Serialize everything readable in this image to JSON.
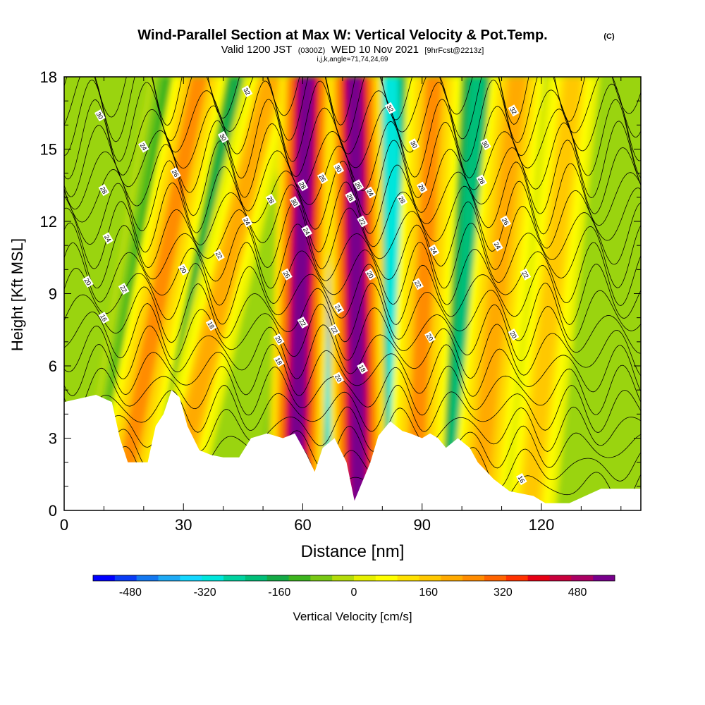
{
  "header": {
    "title": "Wind-Parallel Section at Max W: Vertical Velocity & Pot.Temp.",
    "copyright": "(C)",
    "valid_prefix": "Valid 1200 JST",
    "valid_zulu": "(0300Z)",
    "valid_suffix": "WED 10 Nov 2021",
    "forecast_tag": "[9hrFcst@2213z]",
    "indices": "i,j,k,angle=71,74,24,69"
  },
  "chart_data": {
    "type": "heatmap",
    "xlabel": "Distance [nm]",
    "ylabel": "Height [Kft MSL]",
    "xlim": [
      0,
      145
    ],
    "ylim": [
      0,
      18
    ],
    "x_ticks": [
      0,
      30,
      60,
      90,
      120
    ],
    "x_tick_labels": [
      "0",
      "30",
      "60",
      "90",
      "120"
    ],
    "y_ticks": [
      0,
      3,
      6,
      9,
      12,
      15,
      18
    ],
    "y_tick_labels": [
      "0",
      "3",
      "6",
      "9",
      "12",
      "15",
      "18"
    ],
    "field": "Vertical Velocity",
    "units": "cm/s",
    "colorbar": {
      "label": "Vertical Velocity [cm/s]",
      "tick_values": [
        -480,
        -320,
        -160,
        0,
        160,
        320,
        480
      ],
      "tick_labels": [
        "-480",
        "-320",
        "-160",
        "0",
        "160",
        "320",
        "480"
      ],
      "min": -560,
      "max": 560,
      "colors": [
        "#0000ff",
        "#0a3cf5",
        "#1478f0",
        "#1eaaf5",
        "#14d7ff",
        "#00e6dc",
        "#00d2a0",
        "#00be78",
        "#14aa46",
        "#3cb41e",
        "#78c814",
        "#b4dc0a",
        "#e6f000",
        "#ffff00",
        "#ffe100",
        "#ffc800",
        "#ffaa00",
        "#ff8c00",
        "#ff6400",
        "#ff3200",
        "#e60014",
        "#c8003c",
        "#aa0064",
        "#78008c"
      ]
    },
    "updraft_bands": [
      {
        "x_base": 14,
        "x_top": 34,
        "w": 240
      },
      {
        "x_base": 27,
        "x_top": 52,
        "w": 200
      },
      {
        "x_base": 58,
        "x_top": 61,
        "w": 520
      },
      {
        "x_base": 74,
        "x_top": 73,
        "w": 540
      },
      {
        "x_base": 88,
        "x_top": 93,
        "w": 240
      },
      {
        "x_base": 104,
        "x_top": 114,
        "w": 220
      },
      {
        "x_base": 117,
        "x_top": 128,
        "w": 150
      }
    ],
    "downdraft_bands": [
      {
        "x_base": 10,
        "x_top": 28,
        "w": -140
      },
      {
        "x_base": 24,
        "x_top": 44,
        "w": -180
      },
      {
        "x_base": 55,
        "x_top": 68,
        "w": -230
      },
      {
        "x_base": 70,
        "x_top": 66,
        "w": -430
      },
      {
        "x_base": 84,
        "x_top": 82,
        "w": -300
      },
      {
        "x_base": 98,
        "x_top": 104,
        "w": -200
      },
      {
        "x_base": 112,
        "x_top": 122,
        "w": -120
      }
    ],
    "theta_contours_c": [
      16,
      18,
      20,
      22,
      24,
      26,
      28,
      30,
      32
    ],
    "theta_contour_labels": [
      {
        "x": 9,
        "y": 16.4,
        "text": "30"
      },
      {
        "x": 46,
        "y": 17.4,
        "text": "32"
      },
      {
        "x": 20,
        "y": 15.1,
        "text": "24"
      },
      {
        "x": 40,
        "y": 15.5,
        "text": "30"
      },
      {
        "x": 28,
        "y": 14.0,
        "text": "26"
      },
      {
        "x": 10,
        "y": 13.3,
        "text": "28"
      },
      {
        "x": 11,
        "y": 11.3,
        "text": "24"
      },
      {
        "x": 52,
        "y": 12.9,
        "text": "28"
      },
      {
        "x": 46,
        "y": 12.0,
        "text": "24"
      },
      {
        "x": 58,
        "y": 12.8,
        "text": "30"
      },
      {
        "x": 60,
        "y": 13.5,
        "text": "28"
      },
      {
        "x": 65,
        "y": 13.8,
        "text": "26"
      },
      {
        "x": 69,
        "y": 14.2,
        "text": "30"
      },
      {
        "x": 72,
        "y": 13.0,
        "text": "28"
      },
      {
        "x": 74,
        "y": 13.5,
        "text": "26"
      },
      {
        "x": 77,
        "y": 13.2,
        "text": "24"
      },
      {
        "x": 75,
        "y": 12.0,
        "text": "22"
      },
      {
        "x": 61,
        "y": 11.6,
        "text": "24"
      },
      {
        "x": 82,
        "y": 16.7,
        "text": "32"
      },
      {
        "x": 88,
        "y": 15.2,
        "text": "30"
      },
      {
        "x": 85,
        "y": 12.9,
        "text": "28"
      },
      {
        "x": 90,
        "y": 13.4,
        "text": "26"
      },
      {
        "x": 93,
        "y": 10.8,
        "text": "24"
      },
      {
        "x": 89,
        "y": 9.4,
        "text": "22"
      },
      {
        "x": 92,
        "y": 7.2,
        "text": "20"
      },
      {
        "x": 113,
        "y": 16.6,
        "text": "32"
      },
      {
        "x": 106,
        "y": 15.2,
        "text": "30"
      },
      {
        "x": 105,
        "y": 13.7,
        "text": "28"
      },
      {
        "x": 111,
        "y": 12.0,
        "text": "26"
      },
      {
        "x": 109,
        "y": 11.0,
        "text": "24"
      },
      {
        "x": 116,
        "y": 9.8,
        "text": "22"
      },
      {
        "x": 113,
        "y": 7.3,
        "text": "20"
      },
      {
        "x": 115,
        "y": 1.3,
        "text": "16"
      },
      {
        "x": 6,
        "y": 9.5,
        "text": "20"
      },
      {
        "x": 15,
        "y": 9.2,
        "text": "22"
      },
      {
        "x": 10,
        "y": 8.0,
        "text": "16"
      },
      {
        "x": 30,
        "y": 10.0,
        "text": "20"
      },
      {
        "x": 39,
        "y": 10.6,
        "text": "22"
      },
      {
        "x": 56,
        "y": 9.8,
        "text": "26"
      },
      {
        "x": 37,
        "y": 7.7,
        "text": "18"
      },
      {
        "x": 54,
        "y": 7.1,
        "text": "20"
      },
      {
        "x": 54,
        "y": 6.2,
        "text": "18"
      },
      {
        "x": 60,
        "y": 7.8,
        "text": "22"
      },
      {
        "x": 69,
        "y": 8.4,
        "text": "24"
      },
      {
        "x": 68,
        "y": 7.5,
        "text": "22"
      },
      {
        "x": 77,
        "y": 9.8,
        "text": "20"
      },
      {
        "x": 69,
        "y": 5.5,
        "text": "20"
      },
      {
        "x": 75,
        "y": 5.9,
        "text": "18"
      }
    ],
    "terrain_kft": [
      [
        0,
        4.5
      ],
      [
        8,
        4.8
      ],
      [
        12,
        4.5
      ],
      [
        14,
        3.0
      ],
      [
        16,
        2.0
      ],
      [
        21,
        2.0
      ],
      [
        23,
        3.5
      ],
      [
        25,
        4.0
      ],
      [
        27,
        5.0
      ],
      [
        29,
        4.7
      ],
      [
        31,
        3.5
      ],
      [
        34,
        2.5
      ],
      [
        37,
        2.3
      ],
      [
        40,
        2.2
      ],
      [
        44,
        2.2
      ],
      [
        47,
        3.0
      ],
      [
        51,
        3.2
      ],
      [
        55,
        3.0
      ],
      [
        58,
        3.2
      ],
      [
        61,
        2.3
      ],
      [
        63,
        1.6
      ],
      [
        65,
        2.6
      ],
      [
        68,
        3.0
      ],
      [
        71,
        2.0
      ],
      [
        73,
        0.4
      ],
      [
        75,
        1.2
      ],
      [
        77,
        2.0
      ],
      [
        79,
        3.1
      ],
      [
        82,
        3.7
      ],
      [
        85,
        3.3
      ],
      [
        87,
        3.2
      ],
      [
        90,
        3.0
      ],
      [
        92,
        3.2
      ],
      [
        94,
        3.0
      ],
      [
        96,
        2.6
      ],
      [
        99,
        3.0
      ],
      [
        102,
        2.6
      ],
      [
        104,
        2.0
      ],
      [
        108,
        1.3
      ],
      [
        112,
        0.8
      ],
      [
        115,
        0.7
      ],
      [
        118,
        0.6
      ],
      [
        121,
        0.3
      ],
      [
        127,
        0.3
      ],
      [
        131,
        0.6
      ],
      [
        135,
        0.9
      ],
      [
        145,
        0.9
      ]
    ]
  }
}
